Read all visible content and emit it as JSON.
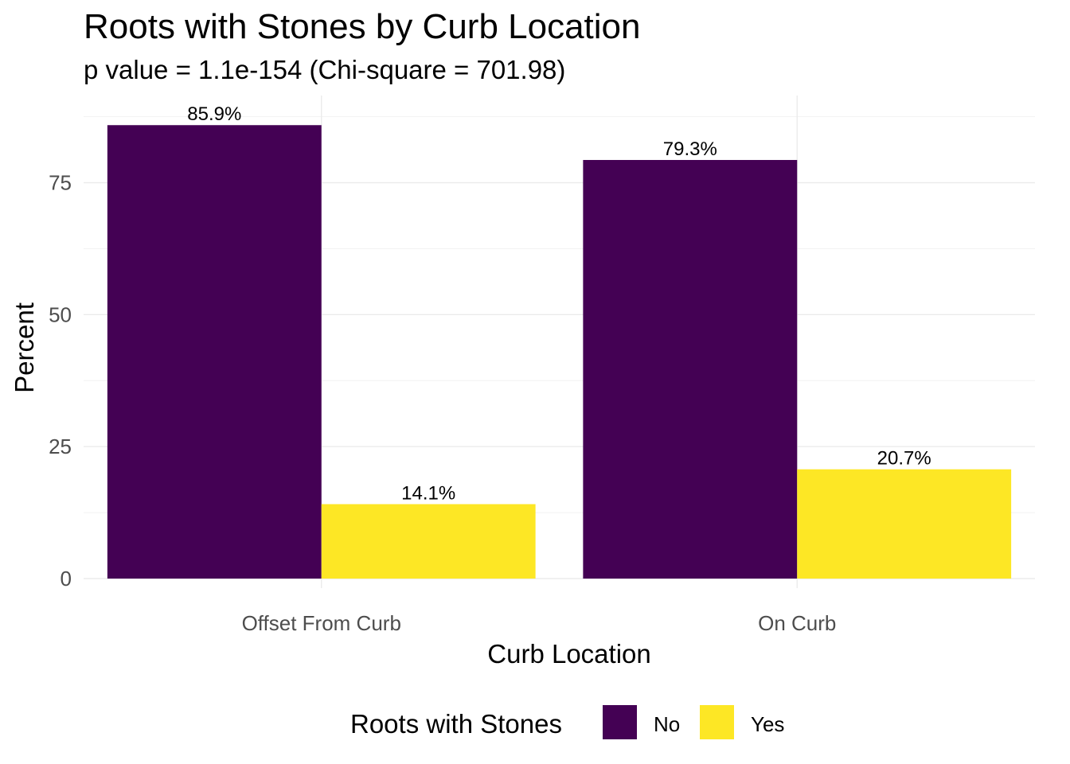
{
  "chart_data": {
    "type": "bar",
    "title": "Roots with Stones by Curb Location",
    "subtitle": "p value = 1.1e-154 (Chi-square = 701.98)",
    "xlabel": "Curb Location",
    "ylabel": "Percent",
    "categories": [
      "Offset From Curb",
      "On Curb"
    ],
    "series": [
      {
        "name": "No",
        "color": "#440154",
        "values": [
          85.9,
          79.3
        ],
        "labels": [
          "85.9%",
          "79.3%"
        ]
      },
      {
        "name": "Yes",
        "color": "#FDE725",
        "values": [
          14.1,
          20.7
        ],
        "labels": [
          "14.1%",
          "20.7%"
        ]
      }
    ],
    "ylim": [
      0,
      88.5
    ],
    "yticks": [
      0,
      25,
      50,
      75
    ],
    "yticks_minor": [
      12.5,
      37.5,
      62.5,
      87.5
    ],
    "grid": true,
    "legend": {
      "title": "Roots with Stones",
      "position": "bottom"
    }
  }
}
